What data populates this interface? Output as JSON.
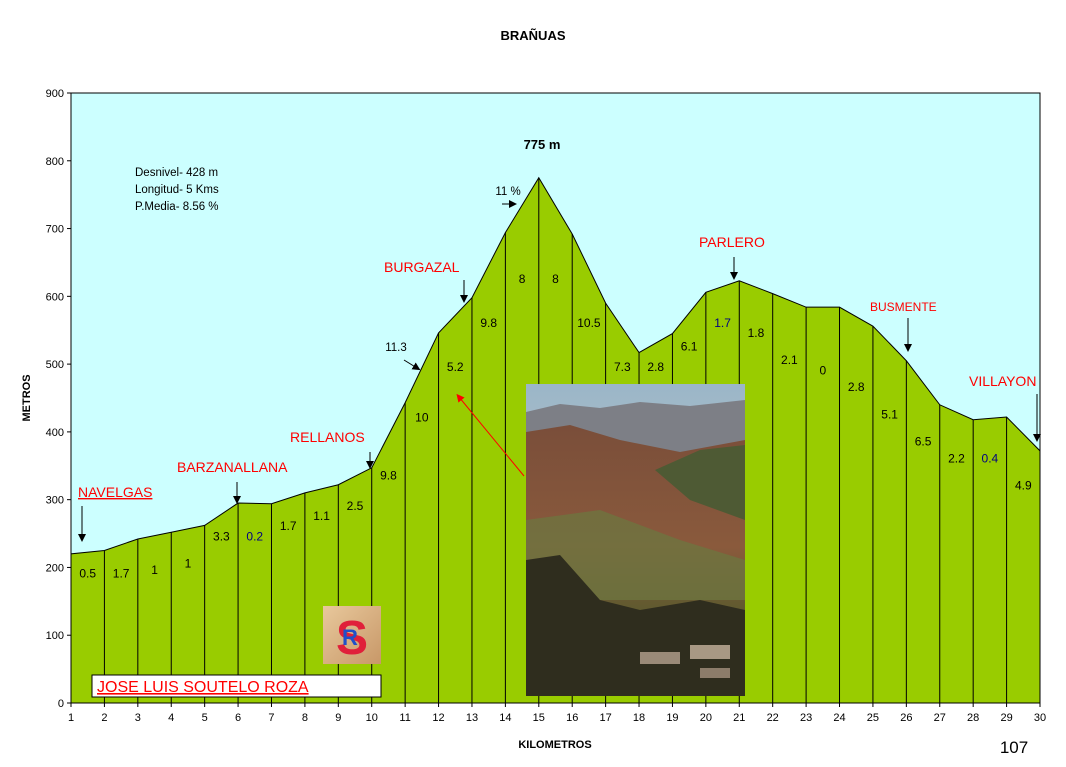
{
  "chart_data": {
    "type": "area",
    "title": "BRAÑUAS",
    "xlabel": "KILOMETROS",
    "ylabel": "METROS",
    "xlim": [
      1,
      30
    ],
    "ylim": [
      0,
      900
    ],
    "xticks": [
      "1",
      "2",
      "3",
      "4",
      "5",
      "6",
      "7",
      "8",
      "9",
      "10",
      "11",
      "12",
      "13",
      "14",
      "15",
      "16",
      "17",
      "18",
      "19",
      "20",
      "21",
      "22",
      "23",
      "24",
      "25",
      "26",
      "27",
      "28",
      "29",
      "30"
    ],
    "yticks": [
      "0",
      "100",
      "200",
      "300",
      "400",
      "500",
      "600",
      "700",
      "800",
      "900"
    ],
    "x": [
      1,
      2,
      3,
      4,
      5,
      6,
      7,
      8,
      9,
      10,
      11,
      12,
      13,
      14,
      15,
      16,
      17,
      18,
      19,
      20,
      21,
      22,
      23,
      24,
      25,
      26,
      27,
      28,
      29,
      30
    ],
    "values": [
      220,
      225,
      242,
      252,
      262,
      295,
      294,
      310,
      322,
      347,
      443,
      546,
      598,
      694,
      775,
      692,
      590,
      517,
      545,
      606,
      623,
      604,
      584,
      584,
      556,
      505,
      440,
      418,
      422,
      372
    ],
    "segment_labels": [
      "0.5",
      "1.7",
      "1",
      "1",
      "3.3",
      "0.2",
      "1.7",
      "1.1",
      "2.5",
      "9.8",
      "10",
      "5.2",
      "9.8",
      "8",
      "8",
      "10.5",
      "7.3",
      "2.8",
      "6.1",
      "1.7",
      "1.8",
      "2.1",
      "0",
      "2.8",
      "5.1",
      "6.5",
      "2.2",
      "0.4",
      "4.9"
    ],
    "segment_label_y": [
      185,
      185,
      190,
      200,
      240,
      240,
      255,
      270,
      285,
      330,
      415,
      490,
      555,
      620,
      620,
      555,
      490,
      490,
      520,
      555,
      540,
      500,
      485,
      460,
      420,
      380,
      355,
      355,
      315
    ],
    "peak_label": "775 m",
    "peak_percent": "11 %",
    "extra_percent": "11.3",
    "stats": [
      "Desnivel- 428 m",
      "Longitud- 5 Kms",
      "P.Media- 8.56 %"
    ],
    "places": [
      {
        "name": "NAVELGAS",
        "underline": true
      },
      {
        "name": "BARZANALLANA"
      },
      {
        "name": "RELLANOS"
      },
      {
        "name": "BURGAZAL"
      },
      {
        "name": "PARLERO"
      },
      {
        "name": "BUSMENTE"
      },
      {
        "name": "VILLAYON"
      }
    ],
    "author": "JOSE LUIS SOUTELO ROZA",
    "logo_letters": "SR",
    "page_number": "107",
    "colors": {
      "sky": "#ccffff",
      "terrain": "#99cc00",
      "place_text": "#ff0000",
      "blue_label": "#000080"
    }
  }
}
